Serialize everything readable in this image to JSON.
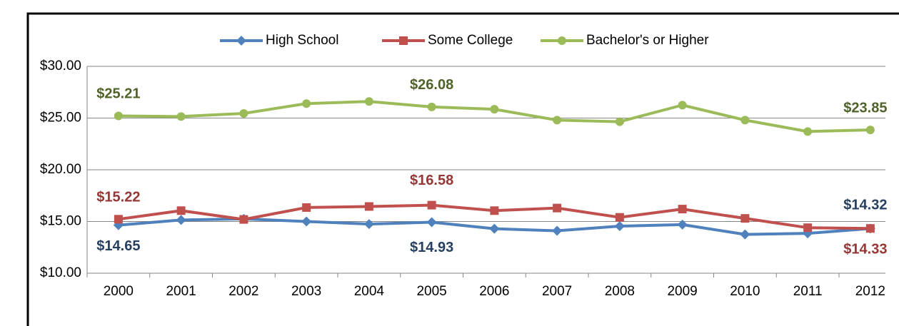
{
  "chart_data": {
    "type": "line",
    "categories": [
      "2000",
      "2001",
      "2002",
      "2003",
      "2004",
      "2005",
      "2006",
      "2007",
      "2008",
      "2009",
      "2010",
      "2011",
      "2012"
    ],
    "series": [
      {
        "name": "High School",
        "color": "#4f81bd",
        "marker": "diamond",
        "label_color": "#243f60",
        "values": [
          14.65,
          15.15,
          15.25,
          15.0,
          14.75,
          14.93,
          14.3,
          14.1,
          14.55,
          14.7,
          13.75,
          13.85,
          14.32
        ],
        "value_labels": [
          "$14.65",
          null,
          null,
          null,
          null,
          "$14.93",
          null,
          null,
          null,
          null,
          null,
          null,
          "$14.32"
        ]
      },
      {
        "name": "Some College",
        "color": "#c0504d",
        "marker": "square",
        "label_color": "#953735",
        "values": [
          15.22,
          16.05,
          15.2,
          16.35,
          16.45,
          16.58,
          16.05,
          16.3,
          15.4,
          16.2,
          15.3,
          14.4,
          14.33
        ],
        "value_labels": [
          "$15.22",
          null,
          null,
          null,
          null,
          "$16.58",
          null,
          null,
          null,
          null,
          null,
          null,
          "$14.33"
        ]
      },
      {
        "name": "Bachelor's or Higher",
        "color": "#9bbb59",
        "marker": "circle",
        "label_color": "#4f6228",
        "values": [
          25.21,
          25.15,
          25.45,
          26.4,
          26.6,
          26.08,
          25.85,
          24.8,
          24.65,
          26.25,
          24.8,
          23.7,
          23.85
        ],
        "value_labels": [
          "$25.21",
          null,
          null,
          null,
          null,
          "$26.08",
          null,
          null,
          null,
          null,
          null,
          null,
          "$23.85"
        ]
      }
    ],
    "ylim": [
      10,
      30
    ],
    "yticks": [
      {
        "value": 10,
        "label": "$10.00"
      },
      {
        "value": 15,
        "label": "$15.00"
      },
      {
        "value": 20,
        "label": "$20.00"
      },
      {
        "value": 25,
        "label": "$25.00"
      },
      {
        "value": 30,
        "label": "$30.00"
      }
    ],
    "grid": true,
    "legend": "top"
  }
}
